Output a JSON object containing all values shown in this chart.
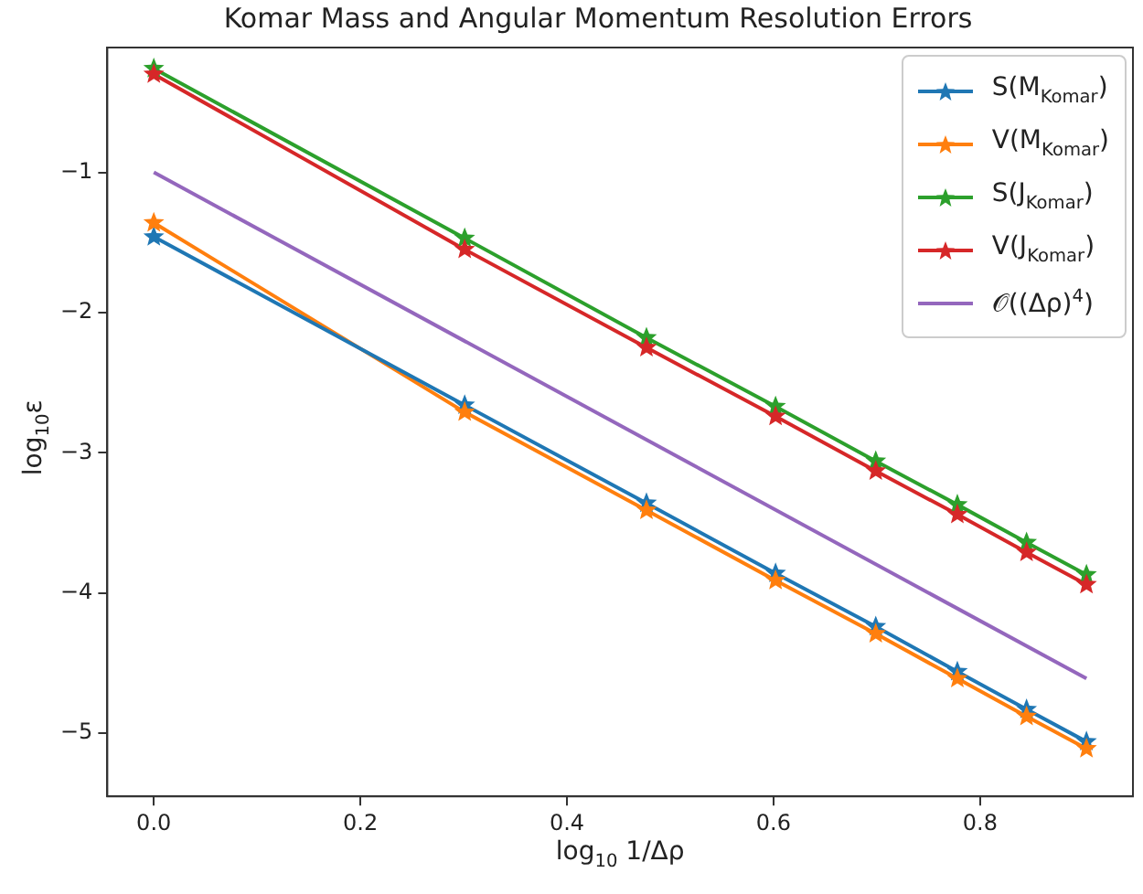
{
  "chart_data": {
    "type": "line",
    "title": "Komar Mass and Angular Momentum Resolution Errors",
    "xlabel": "log$_{10}$ 1/Δρ",
    "ylabel": "log$_{10}$ε",
    "x": [
      0,
      0.301,
      0.477,
      0.602,
      0.699,
      0.778,
      0.845,
      0.903
    ],
    "series": [
      {
        "name": "S(M$_{Komar}$)",
        "color": "#1f77b4",
        "values": [
          -1.46,
          -2.66,
          -3.36,
          -3.86,
          -4.24,
          -4.56,
          -4.83,
          -5.06
        ]
      },
      {
        "name": "V(M$_{Komar}$)",
        "color": "#ff7f0e",
        "values": [
          -1.36,
          -2.71,
          -3.41,
          -3.91,
          -4.29,
          -4.61,
          -4.88,
          -5.11
        ]
      },
      {
        "name": "S(J$_{Komar}$)",
        "color": "#2ca02c",
        "values": [
          -0.26,
          -1.47,
          -2.18,
          -2.67,
          -3.06,
          -3.37,
          -3.64,
          -3.87
        ]
      },
      {
        "name": "V(J$_{Komar}$)",
        "color": "#d62728",
        "values": [
          -0.3,
          -1.55,
          -2.25,
          -2.74,
          -3.13,
          -3.44,
          -3.71,
          -3.94
        ]
      },
      {
        "name": "𝒪((Δρ)$^{4}$)",
        "color": "#9467bd",
        "x": [
          0,
          0.903
        ],
        "values": [
          -1,
          -4.61
        ],
        "marker": "none"
      }
    ],
    "xlim": [
      -0.045,
      0.948
    ],
    "ylim": [
      -5.45,
      -0.11
    ],
    "xticks": [
      {
        "value": 0,
        "label": "0.0"
      },
      {
        "value": 0.2,
        "label": "0.2"
      },
      {
        "value": 0.4,
        "label": "0.4"
      },
      {
        "value": 0.6,
        "label": "0.6"
      },
      {
        "value": 0.8,
        "label": "0.8"
      }
    ],
    "yticks": [
      -5,
      -4,
      -3,
      -2,
      -1
    ],
    "grid": false,
    "legend": "top right",
    "marker": "star",
    "line_style": "solid"
  }
}
